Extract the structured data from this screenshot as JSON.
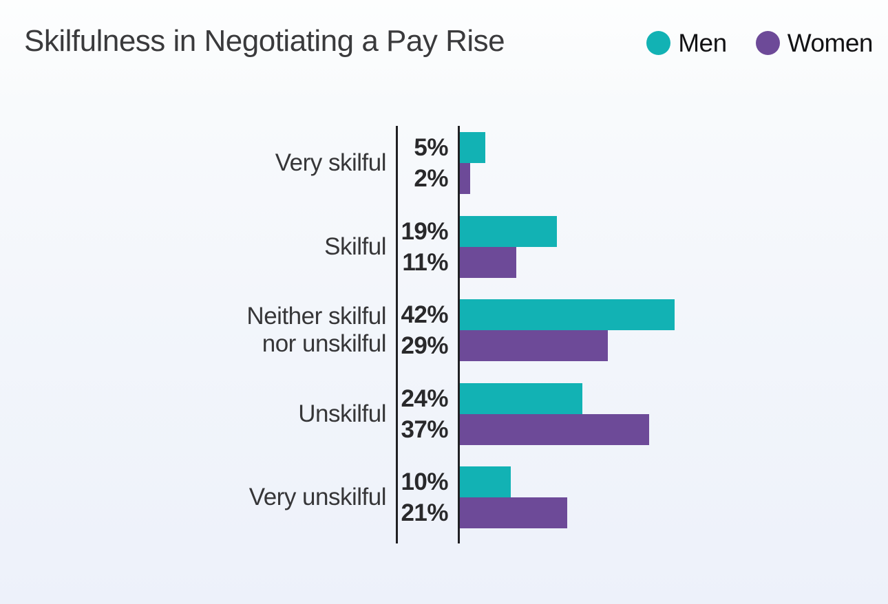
{
  "title": "Skilfulness in Negotiating a Pay Rise",
  "legend": {
    "items": [
      {
        "label": "Men",
        "color": "#12b2b4"
      },
      {
        "label": "Women",
        "color": "#6d4a98"
      }
    ]
  },
  "colors": {
    "men": "#12b2b4",
    "women": "#6d4a98",
    "axis_line": "#202023",
    "title_text": "#3a3a3c",
    "background_top": "#fdfefe",
    "background_bottom": "#edf1fa"
  },
  "chart_data": {
    "type": "bar",
    "orientation": "horizontal",
    "title": "Skilfulness in Negotiating a Pay Rise",
    "categories": [
      "Very skilful",
      "Skilful",
      "Neither skilful nor unskilful",
      "Unskilful",
      "Very unskilful"
    ],
    "series": [
      {
        "name": "Men",
        "color": "#12b2b4",
        "values": [
          5,
          19,
          42,
          24,
          10
        ]
      },
      {
        "name": "Women",
        "color": "#6d4a98",
        "values": [
          2,
          11,
          29,
          37,
          21
        ]
      }
    ],
    "value_suffix": "%",
    "value_labels": {
      "Men": [
        "5%",
        "19%",
        "42%",
        "24%",
        "10%"
      ],
      "Women": [
        "2%",
        "11%",
        "29%",
        "37%",
        "21%"
      ]
    },
    "xlim": [
      0,
      45
    ],
    "grid": false,
    "legend_position": "top-right",
    "value_labels_position": "left-of-axis"
  }
}
